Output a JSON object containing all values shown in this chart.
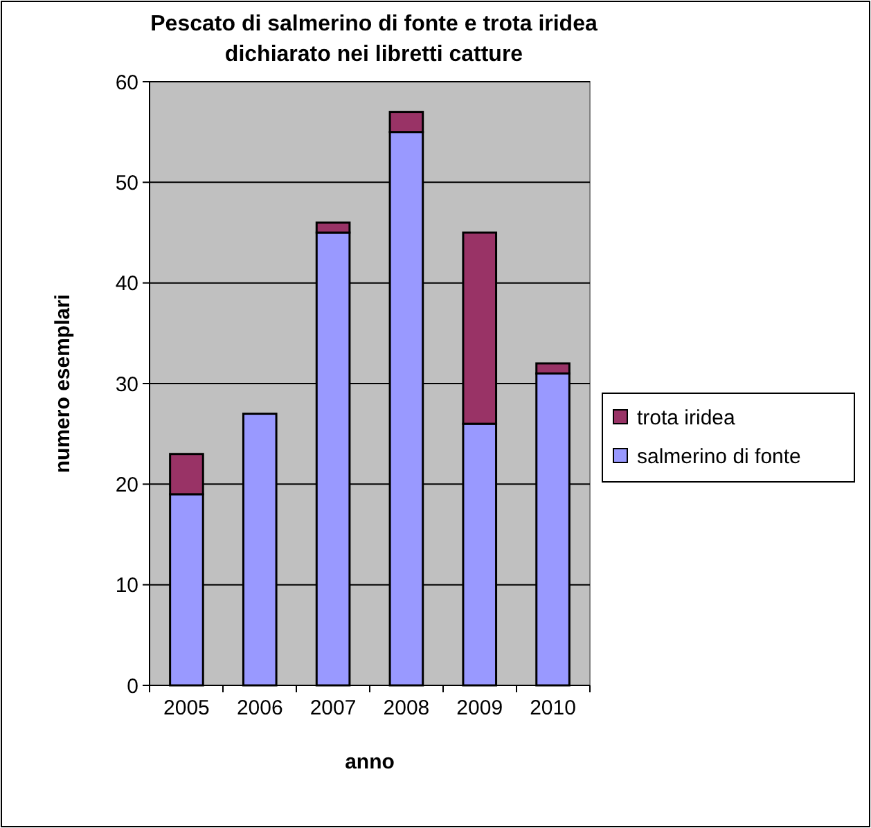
{
  "chart_data": {
    "type": "bar",
    "title": "Pescato di salmerino di fonte e trota iridea\ndichiarato nei libretti catture",
    "xlabel": "anno",
    "ylabel": "numero esemplari",
    "categories": [
      "2005",
      "2006",
      "2007",
      "2008",
      "2009",
      "2010"
    ],
    "stacked": true,
    "series": [
      {
        "name": "salmerino di fonte",
        "color": "#9999ff",
        "values": [
          19,
          27,
          45,
          55,
          26,
          31
        ]
      },
      {
        "name": "trota iridea",
        "color": "#993366",
        "values": [
          4,
          0,
          1,
          2,
          19,
          1
        ]
      }
    ],
    "ylim": [
      0,
      60
    ],
    "yticks": [
      0,
      10,
      20,
      30,
      40,
      50,
      60
    ],
    "grid": "y",
    "legend": "right"
  }
}
